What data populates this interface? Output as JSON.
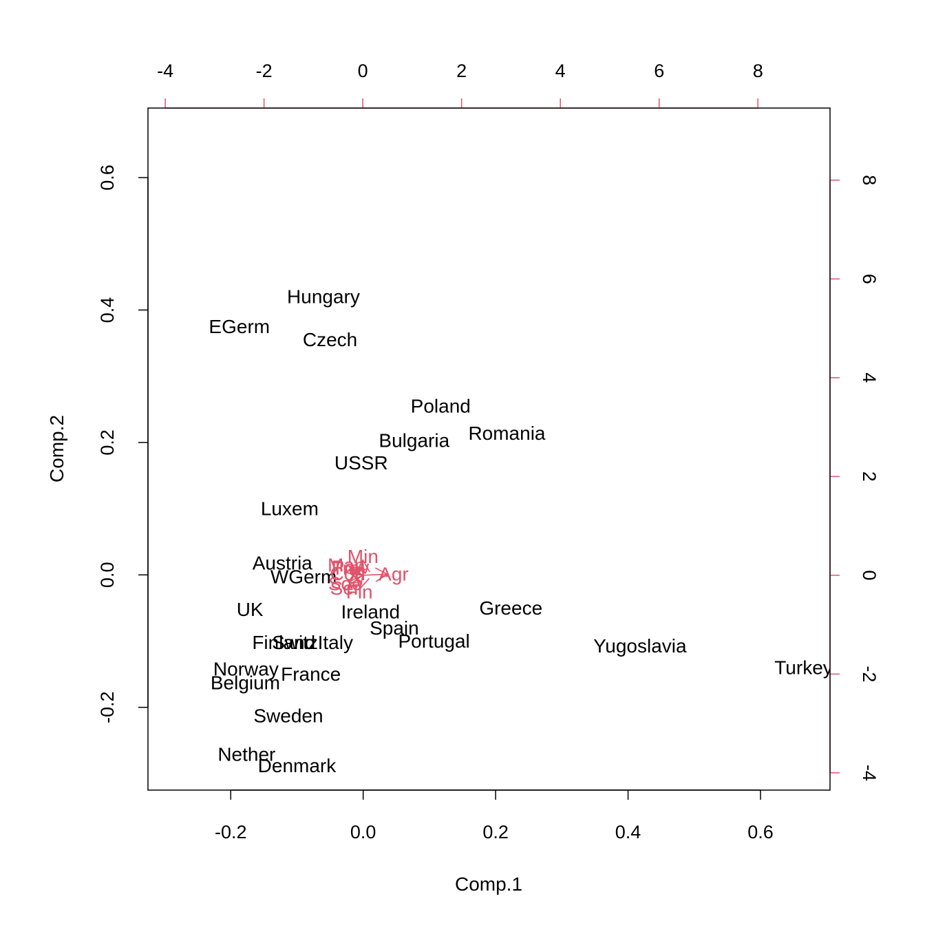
{
  "chart_data": {
    "type": "scatter",
    "subtype": "biplot",
    "xlabel": "Comp.1",
    "ylabel": "Comp.2",
    "xlim": [
      -0.325,
      0.705
    ],
    "ylim": [
      -0.325,
      0.705
    ],
    "x_ticks": [
      -0.2,
      0.0,
      0.2,
      0.4,
      0.6
    ],
    "x_tick_labels": [
      "-0.2",
      "0.0",
      "0.2",
      "0.4",
      "0.6"
    ],
    "y_ticks": [
      -0.2,
      0.0,
      0.2,
      0.4,
      0.6
    ],
    "y_tick_labels": [
      "-0.2",
      "0.0",
      "0.2",
      "0.4",
      "0.6"
    ],
    "top_lim": [
      -4.35,
      9.46
    ],
    "top_ticks": [
      -4,
      -2,
      0,
      2,
      4,
      6,
      8
    ],
    "top_tick_labels": [
      "-4",
      "-2",
      "0",
      "2",
      "4",
      "6",
      "8"
    ],
    "right_ticks": [
      -4,
      -2,
      0,
      2,
      4,
      6,
      8
    ],
    "right_tick_labels": [
      "-4",
      "-2",
      "0",
      "2",
      "4",
      "6",
      "8"
    ],
    "grid": false,
    "colors": {
      "points": "#000000",
      "variables": "#DF536B"
    },
    "observations": [
      {
        "label": "Hungary",
        "x": -0.06,
        "y": 0.42
      },
      {
        "label": "EGerm",
        "x": -0.187,
        "y": 0.375
      },
      {
        "label": "Czech",
        "x": -0.05,
        "y": 0.355
      },
      {
        "label": "Poland",
        "x": 0.117,
        "y": 0.255
      },
      {
        "label": "Romania",
        "x": 0.217,
        "y": 0.214
      },
      {
        "label": "Bulgaria",
        "x": 0.077,
        "y": 0.203
      },
      {
        "label": "USSR",
        "x": -0.003,
        "y": 0.169
      },
      {
        "label": "Luxem",
        "x": -0.111,
        "y": 0.1
      },
      {
        "label": "Austria",
        "x": -0.122,
        "y": 0.018
      },
      {
        "label": "WGerm",
        "x": -0.09,
        "y": -0.003
      },
      {
        "label": "UK",
        "x": -0.171,
        "y": -0.052
      },
      {
        "label": "Ireland",
        "x": 0.011,
        "y": -0.056
      },
      {
        "label": "Greece",
        "x": 0.223,
        "y": -0.05
      },
      {
        "label": "Spain",
        "x": 0.047,
        "y": -0.08
      },
      {
        "label": "Portugal",
        "x": 0.107,
        "y": -0.1
      },
      {
        "label": "Finland",
        "x": -0.12,
        "y": -0.102
      },
      {
        "label": "Switz",
        "x": -0.103,
        "y": -0.102
      },
      {
        "label": "Italy",
        "x": -0.042,
        "y": -0.102
      },
      {
        "label": "Yugoslavia",
        "x": 0.418,
        "y": -0.107
      },
      {
        "label": "Turkey",
        "x": 0.665,
        "y": -0.14
      },
      {
        "label": "Norway",
        "x": -0.177,
        "y": -0.142
      },
      {
        "label": "France",
        "x": -0.079,
        "y": -0.15
      },
      {
        "label": "Belgium",
        "x": -0.178,
        "y": -0.163
      },
      {
        "label": "Sweden",
        "x": -0.113,
        "y": -0.213
      },
      {
        "label": "Nether",
        "x": -0.176,
        "y": -0.271
      },
      {
        "label": "Denmark",
        "x": -0.1,
        "y": -0.288
      }
    ],
    "variables": [
      {
        "label": "Agr",
        "x": 0.624,
        "y": 0.027
      },
      {
        "label": "Min",
        "x": 0.003,
        "y": 0.383
      },
      {
        "label": "Man",
        "x": -0.333,
        "y": 0.208
      },
      {
        "label": "Pow",
        "x": -0.254,
        "y": 0.162
      },
      {
        "label": "Con",
        "x": -0.306,
        "y": 0.031
      },
      {
        "label": "Ser",
        "x": -0.359,
        "y": -0.262
      },
      {
        "label": "Fin",
        "x": -0.069,
        "y": -0.339
      },
      {
        "label": "Soc",
        "x": -0.365,
        "y": -0.171
      },
      {
        "label": "Tra",
        "x": -0.346,
        "y": 0.147
      }
    ]
  }
}
